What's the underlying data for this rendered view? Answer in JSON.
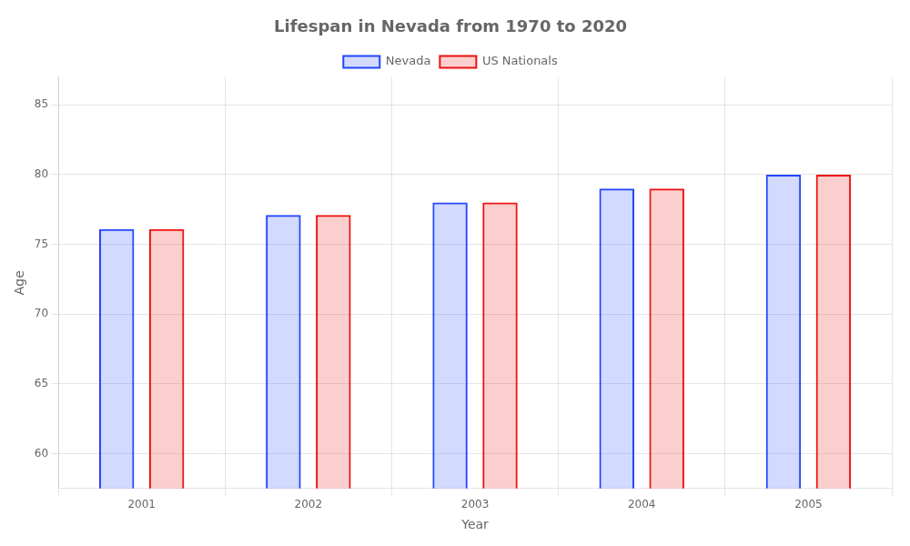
{
  "chart_data": {
    "type": "bar",
    "title": "Lifespan in Nevada from 1970 to 2020",
    "x_label": "Year",
    "y_label": "Age",
    "categories": [
      "2001",
      "2002",
      "2003",
      "2004",
      "2005"
    ],
    "series": [
      {
        "name": "Nevada",
        "color": "#2244ff",
        "values": [
          76.1,
          77.1,
          78.0,
          79.0,
          80.0
        ]
      },
      {
        "name": "US Nationals",
        "color": "#ee1111",
        "values": [
          76.1,
          77.1,
          78.0,
          79.0,
          80.0
        ]
      }
    ],
    "ylim": [
      57.5,
      87
    ],
    "yticks": [
      60,
      65,
      70,
      75,
      80,
      85
    ],
    "grid": true,
    "legend": "top"
  }
}
